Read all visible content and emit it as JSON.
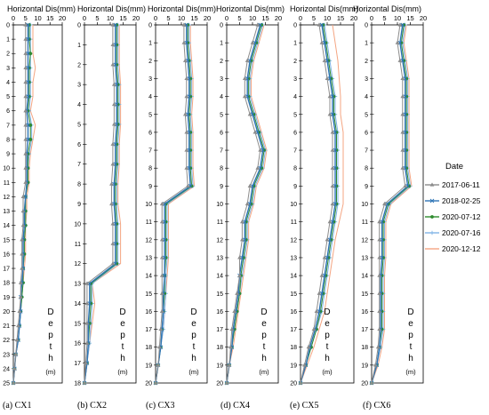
{
  "chart_data": [
    {
      "type": "line",
      "xlabel": "Horizontal Dis(mm)",
      "xlim": [
        0,
        20
      ],
      "xticks": [
        0,
        5,
        10,
        15,
        20
      ],
      "ylim": [
        0,
        25
      ],
      "caption": "(a) CX1",
      "depth_label": [
        "D",
        "e",
        "p",
        "t",
        "h"
      ],
      "depth_unit": "(m)",
      "depths": [
        0,
        1,
        2,
        3,
        4,
        5,
        6,
        7,
        8,
        9,
        10,
        11,
        12,
        13,
        14,
        15,
        16,
        17,
        18,
        19,
        20,
        21,
        22,
        23,
        24,
        25
      ],
      "series": [
        {
          "name": "2017-06-11",
          "values": [
            5,
            5,
            5,
            5,
            5,
            5,
            5,
            5,
            5,
            5,
            5,
            5,
            4,
            4,
            4,
            3.5,
            3.5,
            3.5,
            3,
            3,
            2.5,
            2,
            1.5,
            1,
            0.5,
            0
          ]
        },
        {
          "name": "2018-02-25",
          "values": [
            6,
            6,
            6,
            6,
            6,
            6,
            5.5,
            6,
            6,
            5.5,
            5.5,
            5.5,
            5,
            4.5,
            4.5,
            4,
            4,
            4,
            3.5,
            3,
            3,
            2.5,
            2,
            1,
            0.5,
            0
          ]
        },
        {
          "name": "2020-07-12",
          "values": [
            6.5,
            6.5,
            7,
            6.5,
            6.5,
            6.5,
            6,
            7,
            7,
            6,
            6,
            6,
            5,
            5,
            5,
            4.5,
            4.5,
            4,
            4,
            3.5,
            3,
            2.5,
            2,
            1,
            0.5,
            0
          ]
        },
        {
          "name": "2020-07-16",
          "values": [
            7,
            7,
            7,
            7,
            7,
            7,
            6.5,
            7.5,
            7.5,
            6.5,
            6,
            6,
            5,
            5,
            5,
            4.5,
            4.5,
            4,
            4,
            3.5,
            3,
            2.5,
            2,
            1,
            0.5,
            0
          ]
        },
        {
          "name": "2020-12-12",
          "values": [
            8,
            8,
            8,
            9,
            8,
            8,
            7,
            9,
            8,
            7,
            6.5,
            6.5,
            5.5,
            5.5,
            5,
            5,
            5,
            4.5,
            4,
            3.5,
            3,
            2.5,
            2,
            1,
            0.5,
            0
          ]
        }
      ]
    },
    {
      "type": "line",
      "xlabel": "Horizontal Dis(mm)",
      "xlim": [
        0,
        20
      ],
      "xticks": [
        0,
        5,
        10,
        15,
        20
      ],
      "ylim": [
        0,
        18
      ],
      "caption": "(b) CX2",
      "depth_label": [
        "D",
        "e",
        "p",
        "t",
        "h"
      ],
      "depth_unit": "(m)",
      "depths": [
        0,
        1,
        2,
        3,
        4,
        5,
        6,
        7,
        8,
        9,
        10,
        11,
        12,
        13,
        14,
        15,
        16,
        17,
        18
      ],
      "series": [
        {
          "name": "2017-06-11",
          "values": [
            11,
            11,
            11,
            11.5,
            11.5,
            11.5,
            11,
            11,
            10.5,
            10.5,
            11,
            11,
            11,
            1,
            1,
            1,
            1,
            0.5,
            0
          ]
        },
        {
          "name": "2018-02-25",
          "values": [
            12,
            12,
            12,
            12.5,
            12.5,
            12.5,
            12,
            12,
            11.5,
            11.5,
            12,
            12,
            12,
            2,
            2,
            1.5,
            1.5,
            1,
            0
          ]
        },
        {
          "name": "2020-07-12",
          "values": [
            12.5,
            12.5,
            12.5,
            13,
            13,
            13,
            12.5,
            12.5,
            12,
            12,
            12.5,
            12.5,
            12.5,
            2.5,
            2.5,
            2,
            1.5,
            1,
            0
          ]
        },
        {
          "name": "2020-07-16",
          "values": [
            13,
            13,
            13,
            13.5,
            13.5,
            13.5,
            13,
            13,
            12.5,
            12.5,
            13,
            13,
            13,
            3,
            3,
            2.5,
            2,
            1,
            0
          ]
        },
        {
          "name": "2020-12-12",
          "values": [
            13.5,
            13.5,
            13.5,
            14,
            14,
            14,
            13.5,
            13.5,
            13,
            13,
            14,
            14,
            14,
            3,
            4,
            3,
            2,
            1,
            0
          ]
        }
      ]
    },
    {
      "type": "line",
      "xlabel": "Horizontal Dis(mm)",
      "xlim": [
        0,
        20
      ],
      "xticks": [
        0,
        5,
        10,
        15,
        20
      ],
      "ylim": [
        0,
        20
      ],
      "caption": "(c) CX3",
      "depth_label": [
        "D",
        "e",
        "p",
        "t",
        "h"
      ],
      "depth_unit": "(m)",
      "depths": [
        0,
        1,
        2,
        3,
        4,
        5,
        6,
        7,
        8,
        9,
        10,
        11,
        12,
        13,
        14,
        15,
        16,
        17,
        18,
        19,
        20
      ],
      "series": [
        {
          "name": "2017-06-11",
          "values": [
            11,
            11,
            11.5,
            12,
            12,
            11.5,
            12,
            12,
            12,
            12.5,
            2.5,
            2.5,
            2.5,
            2.5,
            2.5,
            2.5,
            2.5,
            2,
            1.5,
            1,
            0
          ]
        },
        {
          "name": "2018-02-25",
          "values": [
            12,
            12,
            12.5,
            13,
            13,
            12.5,
            13,
            13,
            13,
            13.5,
            3.5,
            3.5,
            3.5,
            3.5,
            3.5,
            3,
            3,
            2.5,
            2,
            1,
            0
          ]
        },
        {
          "name": "2020-07-12",
          "values": [
            12.5,
            12.5,
            13,
            13.5,
            13.5,
            13,
            13.5,
            13.5,
            13.5,
            14,
            4,
            4,
            4,
            4,
            3.5,
            3.5,
            3,
            2.5,
            2,
            1,
            0
          ]
        },
        {
          "name": "2020-07-16",
          "values": [
            13,
            13,
            13.5,
            14,
            14,
            13.5,
            14,
            14,
            14,
            14.5,
            4.5,
            4.5,
            4.5,
            4.5,
            4,
            4,
            3.5,
            3,
            2,
            1,
            0
          ]
        },
        {
          "name": "2020-12-12",
          "values": [
            13.5,
            13.5,
            14,
            14.5,
            14.5,
            14,
            14.5,
            14.5,
            14.5,
            15,
            5,
            5,
            5,
            5,
            4.5,
            4,
            3.5,
            3,
            2,
            1,
            0
          ]
        }
      ]
    },
    {
      "type": "line",
      "xlabel": "Horizontal Dis(mm)",
      "xlim": [
        0,
        20
      ],
      "xticks": [
        0,
        5,
        10,
        15,
        20
      ],
      "ylim": [
        0,
        20
      ],
      "caption": "(d) CX4",
      "depth_label": [
        "D",
        "e",
        "p",
        "t",
        "h"
      ],
      "depth_unit": "(m)",
      "depths": [
        0,
        1,
        2,
        3,
        4,
        5,
        6,
        7,
        8,
        9,
        10,
        11,
        12,
        13,
        14,
        15,
        16,
        17,
        18,
        19,
        20
      ],
      "series": [
        {
          "name": "2017-06-11",
          "values": [
            12,
            10,
            8,
            7,
            7,
            9,
            11,
            13,
            12,
            9,
            8,
            6,
            6,
            5,
            5,
            4,
            3,
            2,
            1.5,
            1,
            0
          ]
        },
        {
          "name": "2018-02-25",
          "values": [
            13,
            11,
            9,
            8,
            8,
            10,
            12,
            14,
            13,
            10,
            9,
            7,
            7,
            6,
            5,
            4.5,
            3.5,
            2.5,
            2,
            1,
            0
          ]
        },
        {
          "name": "2020-07-12",
          "values": [
            13.5,
            11.5,
            9.5,
            8.5,
            8.5,
            10.5,
            12.5,
            14.5,
            13.5,
            10.5,
            9.5,
            7.5,
            7.5,
            6.5,
            5.5,
            5,
            4,
            3,
            2,
            1,
            0
          ]
        },
        {
          "name": "2020-07-16",
          "values": [
            14,
            12,
            10,
            9,
            9,
            11,
            13,
            15,
            14,
            11,
            10,
            8,
            8,
            7,
            6,
            5,
            4,
            3,
            2,
            1,
            0
          ]
        },
        {
          "name": "2020-12-12",
          "values": [
            14.5,
            12.5,
            10.5,
            9.5,
            9.5,
            11.5,
            13.5,
            15.5,
            14.5,
            11.5,
            10.5,
            8.5,
            8.5,
            7.5,
            6.5,
            5.5,
            4.5,
            3.5,
            2.5,
            1,
            0
          ]
        }
      ]
    },
    {
      "type": "line",
      "xlabel": "Horizontal Dis(mm)",
      "xlim": [
        0,
        20
      ],
      "xticks": [
        0,
        5,
        10,
        15,
        20
      ],
      "ylim": [
        0,
        20
      ],
      "caption": "(e) CX5",
      "depth_label": [
        "D",
        "e",
        "p",
        "t",
        "h"
      ],
      "depth_unit": "(m)",
      "depths": [
        0,
        1,
        2,
        3,
        4,
        5,
        6,
        7,
        8,
        9,
        10,
        11,
        12,
        13,
        14,
        15,
        16,
        17,
        18,
        19,
        20
      ],
      "series": [
        {
          "name": "2017-06-11",
          "values": [
            7,
            8,
            9,
            10,
            11,
            11,
            12,
            12,
            12,
            12,
            12,
            11,
            10,
            9,
            8,
            7,
            6,
            5,
            3,
            1.5,
            0
          ]
        },
        {
          "name": "2018-02-25",
          "values": [
            8,
            9,
            10,
            11,
            12,
            12,
            13,
            13,
            13,
            13,
            13,
            12,
            11,
            10,
            9,
            8,
            7,
            5.5,
            3.5,
            2,
            0
          ]
        },
        {
          "name": "2020-07-12",
          "values": [
            8.5,
            9.5,
            10.5,
            11.5,
            12.5,
            12.5,
            13.5,
            13.5,
            13.5,
            13.5,
            13.5,
            12.5,
            11.5,
            10.5,
            9.5,
            8.5,
            7.5,
            6,
            4,
            2,
            0
          ]
        },
        {
          "name": "2020-07-16",
          "values": [
            9,
            10,
            11,
            12,
            13,
            13,
            14,
            14,
            14,
            14,
            14,
            13,
            12,
            11,
            10,
            9,
            8,
            6,
            4,
            2,
            0
          ]
        },
        {
          "name": "2020-12-12",
          "values": [
            12,
            13,
            14,
            14.5,
            15,
            15,
            16,
            16,
            16,
            16,
            16,
            14.5,
            13,
            12,
            11,
            10,
            9,
            7,
            5,
            2.5,
            0
          ]
        }
      ]
    },
    {
      "type": "line",
      "xlabel": "Horizontal Dis(mm)",
      "xlim": [
        0,
        20
      ],
      "xticks": [
        0,
        5,
        10,
        15,
        20
      ],
      "ylim": [
        0,
        20
      ],
      "caption": "(f) CX6",
      "depth_label": [
        "D",
        "e",
        "p",
        "t",
        "h"
      ],
      "depth_unit": "(m)",
      "depths": [
        0,
        1,
        2,
        3,
        4,
        5,
        6,
        7,
        8,
        9,
        10,
        11,
        12,
        13,
        14,
        15,
        16,
        17,
        18,
        19,
        20
      ],
      "series": [
        {
          "name": "2017-06-11",
          "values": [
            11,
            10,
            11,
            12,
            12,
            12,
            12,
            12,
            12,
            13,
            5,
            3,
            3,
            3,
            3,
            3,
            3,
            3,
            2.5,
            1.5,
            0
          ]
        },
        {
          "name": "2018-02-25",
          "values": [
            12,
            11,
            12,
            13,
            13,
            13,
            13,
            13,
            13,
            14,
            6,
            4,
            4,
            4,
            3.5,
            3.5,
            3.5,
            3.5,
            3,
            2,
            0
          ]
        },
        {
          "name": "2020-07-12",
          "values": [
            12.5,
            11.5,
            12.5,
            13.5,
            13.5,
            13.5,
            13.5,
            13.5,
            13.5,
            14.5,
            6.5,
            4.5,
            4.5,
            4.5,
            4,
            4,
            4,
            4,
            3,
            2,
            0
          ]
        },
        {
          "name": "2020-07-16",
          "values": [
            13,
            12,
            13,
            14,
            14,
            14,
            14,
            14,
            14,
            15,
            7,
            5,
            5,
            5,
            4.5,
            4.5,
            4.5,
            4.5,
            3.5,
            2,
            0
          ]
        },
        {
          "name": "2020-12-12",
          "values": [
            13.5,
            12.5,
            13.5,
            14.5,
            14.5,
            14.5,
            14.5,
            14.5,
            14.5,
            15.5,
            7.5,
            5.5,
            5.5,
            5.5,
            5,
            5,
            5,
            5,
            4,
            2.5,
            0
          ]
        }
      ]
    }
  ],
  "legend": {
    "title": "Date",
    "entries": [
      {
        "name": "2017-06-11",
        "color": "#8c8c8c",
        "marker": "triangle"
      },
      {
        "name": "2018-02-25",
        "color": "#2e75b6",
        "marker": "x"
      },
      {
        "name": "2020-07-12",
        "color": "#2e8b2e",
        "marker": "circle"
      },
      {
        "name": "2020-07-16",
        "color": "#7fb3e6",
        "marker": "plus"
      },
      {
        "name": "2020-12-12",
        "color": "#f4a582",
        "marker": "none"
      }
    ]
  }
}
